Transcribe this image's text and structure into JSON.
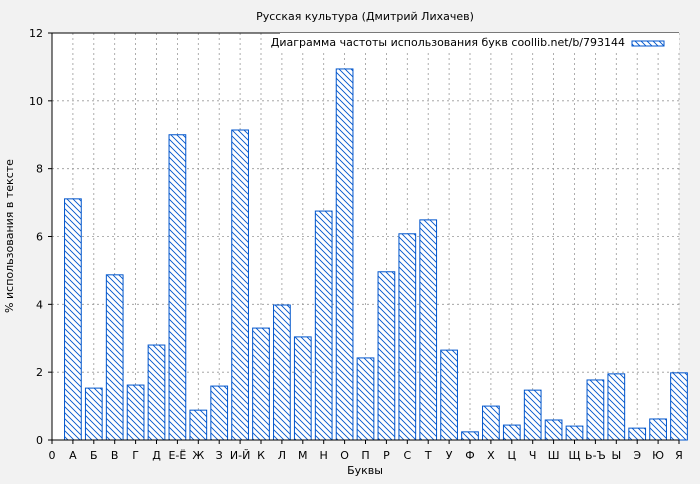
{
  "chart_data": {
    "type": "bar",
    "title": "Русская культура (Дмитрий Лихачев)",
    "xlabel": "Буквы",
    "ylabel": "% использования в тексте",
    "ylim": [
      0,
      12
    ],
    "yticks": [
      "0",
      "2",
      "4",
      "6",
      "8",
      "10",
      "12"
    ],
    "x_zero_label": "0",
    "grid": true,
    "legend": {
      "position": "top-right",
      "label": "Диаграмма частоты использования букв coollib.net/b/793144"
    },
    "colors": {
      "bar_stroke": "#0055cc",
      "hatch": "#0055cc",
      "plot_bg": "#ffffff",
      "page_bg": "#f2f2f2"
    },
    "categories": [
      "А",
      "Б",
      "В",
      "Г",
      "Д",
      "Е-Ё",
      "Ж",
      "З",
      "И-Й",
      "К",
      "Л",
      "М",
      "Н",
      "О",
      "П",
      "Р",
      "С",
      "Т",
      "У",
      "Ф",
      "Х",
      "Ц",
      "Ч",
      "Ш",
      "Щ",
      "Ь-Ъ",
      "Ы",
      "Э",
      "Ю",
      "Я"
    ],
    "series": [
      {
        "name": "Диаграмма частоты использования букв coollib.net/b/793144",
        "values": [
          7.11,
          1.53,
          4.87,
          1.62,
          2.8,
          9.0,
          0.88,
          1.59,
          9.14,
          3.3,
          3.98,
          3.04,
          6.75,
          10.94,
          2.42,
          4.96,
          6.08,
          6.49,
          2.65,
          0.24,
          1.0,
          0.44,
          1.47,
          0.59,
          0.41,
          1.77,
          1.95,
          0.35,
          0.62,
          1.98
        ]
      }
    ]
  }
}
